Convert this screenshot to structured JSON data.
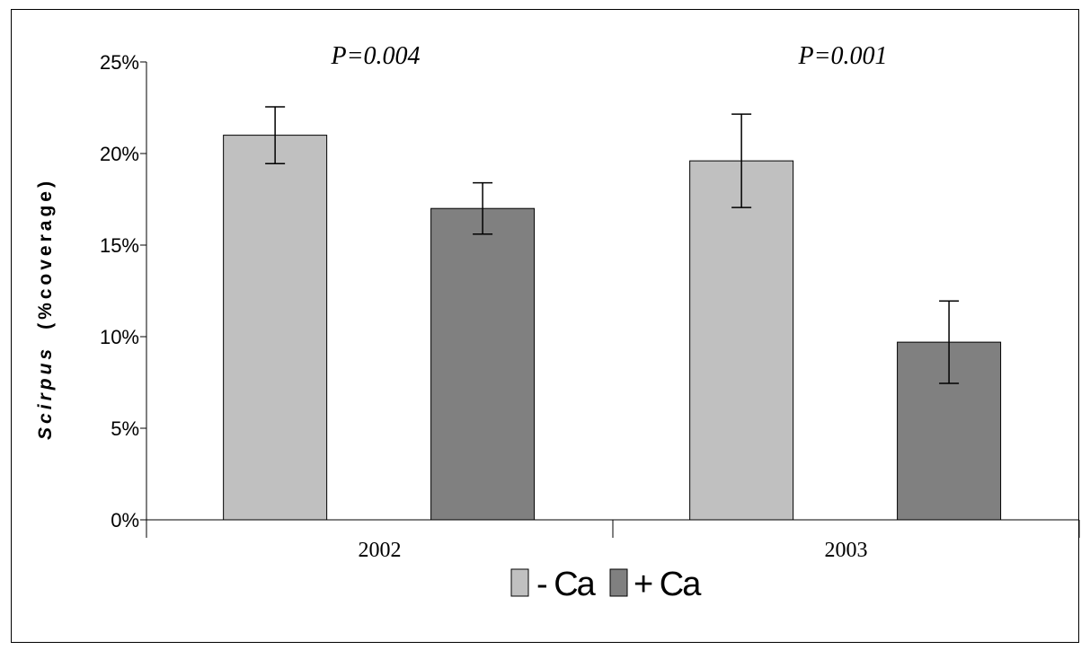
{
  "chart_data": {
    "type": "bar",
    "categories": [
      "2002",
      "2003"
    ],
    "series": [
      {
        "name": "- Ca",
        "values": [
          0.21,
          0.196
        ],
        "errors": [
          0.0155,
          0.0255
        ],
        "color": "#c0c0c0"
      },
      {
        "name": "+ Ca",
        "values": [
          0.17,
          0.097
        ],
        "errors": [
          0.014,
          0.0225
        ],
        "color": "#808080"
      }
    ],
    "ylim": [
      0,
      0.25
    ],
    "yticks": [
      0,
      0.05,
      0.1,
      0.15,
      0.2,
      0.25
    ],
    "ytick_labels": [
      "0%",
      "5%",
      "10%",
      "15%",
      "20%",
      "25%"
    ],
    "ylabel_italic": "Scirpus",
    "ylabel_rest": "(%coverage)",
    "xlabel": "",
    "title": "",
    "annotations": [
      {
        "category": "2002",
        "text": "P=0.004"
      },
      {
        "category": "2003",
        "text": "P=0.001"
      }
    ],
    "legend_position": "bottom",
    "grid": false
  }
}
